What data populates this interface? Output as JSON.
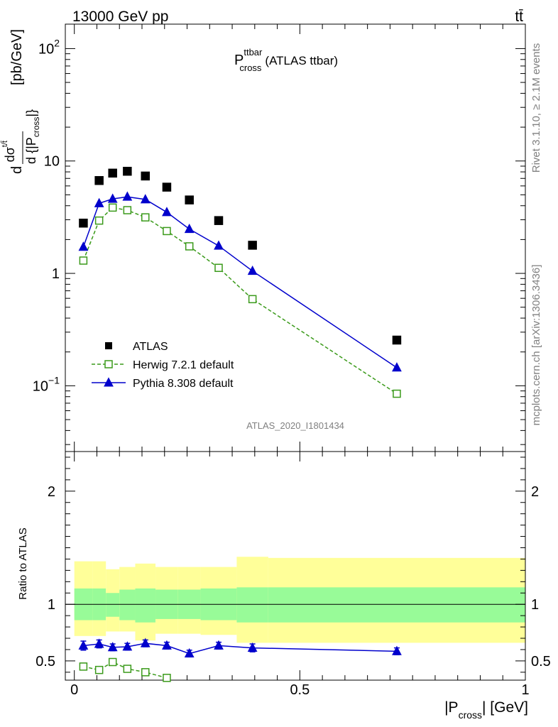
{
  "header": {
    "energy": "13000 GeV pp",
    "process": "tt̄"
  },
  "title": {
    "main": "P",
    "sup": "ttbar",
    "sub": "cross",
    "suffix": "(ATLAS ttbar)"
  },
  "side": {
    "rivet": "Rivet 3.1.10, ≥ 2.1M events",
    "mcplots": "mcplots.cern.ch [arXiv:1306.3436]"
  },
  "analysis_id": "ATLAS_2020_I1801434",
  "ylabel_top": {
    "d": "d",
    "dsigma": "dσ",
    "sup": "t/t̄",
    "denom": "d {|P",
    "denom_sub": "cross",
    "denom_end": "|}",
    "units": "[pb/GeV]"
  },
  "ylabel_ratio": "Ratio to ATLAS",
  "xlabel": {
    "main": "|P",
    "sub": "cross",
    "end": "| [GeV]"
  },
  "tick_labels": {
    "top": [
      {
        "base": "10",
        "exp": "2"
      },
      {
        "base": "10",
        "exp": ""
      },
      {
        "base": "1",
        "exp": ""
      },
      {
        "base": "10",
        "exp": "−1"
      }
    ],
    "ratio": [
      "0.5",
      "1",
      "2"
    ],
    "x": [
      "0",
      "0.5",
      "1"
    ]
  },
  "legend": [
    {
      "label": "ATLAS",
      "marker": "filled-square",
      "color": "#000000"
    },
    {
      "label": "Herwig 7.2.1 default",
      "marker": "open-square-dashed",
      "color": "#3a9a1a"
    },
    {
      "label": "Pythia 8.308 default",
      "marker": "triangle-solid",
      "color": "#0000cc"
    }
  ],
  "colors": {
    "atlas": "#000000",
    "herwig": "#3a9a1a",
    "pythia": "#0000cc",
    "band_inner": "#98fb98",
    "band_outer": "#ffff99"
  },
  "chart_data": [
    {
      "type": "scatter",
      "yscale": "log",
      "xlim": [
        -0.02,
        1.0
      ],
      "ylim": [
        0.026,
        165
      ],
      "bins": [
        0.0,
        0.04,
        0.07,
        0.1,
        0.135,
        0.18,
        0.23,
        0.28,
        0.36,
        0.43,
        1.0
      ],
      "x": [
        0.02,
        0.055,
        0.085,
        0.1175,
        0.1575,
        0.205,
        0.255,
        0.32,
        0.395,
        0.715
      ],
      "series": [
        {
          "name": "ATLAS",
          "values": [
            2.8,
            6.7,
            7.8,
            8.1,
            7.35,
            5.85,
            4.5,
            2.95,
            1.78,
            0.255
          ]
        },
        {
          "name": "Herwig 7.2.1 default",
          "values": [
            1.3,
            2.95,
            3.85,
            3.65,
            3.15,
            2.38,
            1.74,
            1.12,
            0.59,
            0.085
          ]
        },
        {
          "name": "Pythia 8.308 default",
          "values": [
            1.72,
            4.2,
            4.6,
            4.8,
            4.55,
            3.5,
            2.48,
            1.76,
            1.05,
            0.145
          ]
        }
      ]
    },
    {
      "type": "scatter",
      "xlim": [
        -0.02,
        1.0
      ],
      "ylim": [
        0.33,
        2.35
      ],
      "xlabel": "|Pcross| [GeV]",
      "ylabel": "Ratio to ATLAS",
      "x": [
        0.02,
        0.055,
        0.085,
        0.1175,
        0.1575,
        0.205,
        0.255,
        0.32,
        0.395,
        0.715
      ],
      "bins": [
        0.0,
        0.04,
        0.07,
        0.1,
        0.135,
        0.18,
        0.23,
        0.28,
        0.36,
        0.43,
        1.0
      ],
      "band_inner_lo": [
        0.86,
        0.86,
        0.89,
        0.86,
        0.84,
        0.87,
        0.87,
        0.86,
        0.84,
        0.84
      ],
      "band_inner_hi": [
        1.14,
        1.14,
        1.1,
        1.13,
        1.14,
        1.13,
        1.13,
        1.14,
        1.15,
        1.15
      ],
      "band_outer_lo": [
        0.72,
        0.72,
        0.76,
        0.76,
        0.68,
        0.74,
        0.74,
        0.73,
        0.66,
        0.66
      ],
      "band_outer_hi": [
        1.38,
        1.38,
        1.31,
        1.33,
        1.36,
        1.33,
        1.33,
        1.33,
        1.42,
        1.41
      ],
      "series": [
        {
          "name": "Herwig 7.2.1 default",
          "values": [
            0.45,
            0.42,
            0.49,
            0.43,
            0.4,
            0.35,
            null,
            null,
            null,
            null
          ],
          "err": [
            0.03,
            0.025,
            0.022,
            0.02,
            0.018,
            0.02,
            null,
            null,
            null,
            null
          ]
        },
        {
          "name": "Pythia 8.308 default",
          "values": [
            0.635,
            0.65,
            0.62,
            0.625,
            0.655,
            0.635,
            0.565,
            0.635,
            0.615,
            0.585
          ],
          "err": [
            0.04,
            0.035,
            0.03,
            0.03,
            0.03,
            0.03,
            0.03,
            0.03,
            0.035,
            0.03
          ]
        }
      ],
      "reference_line": 1
    }
  ]
}
